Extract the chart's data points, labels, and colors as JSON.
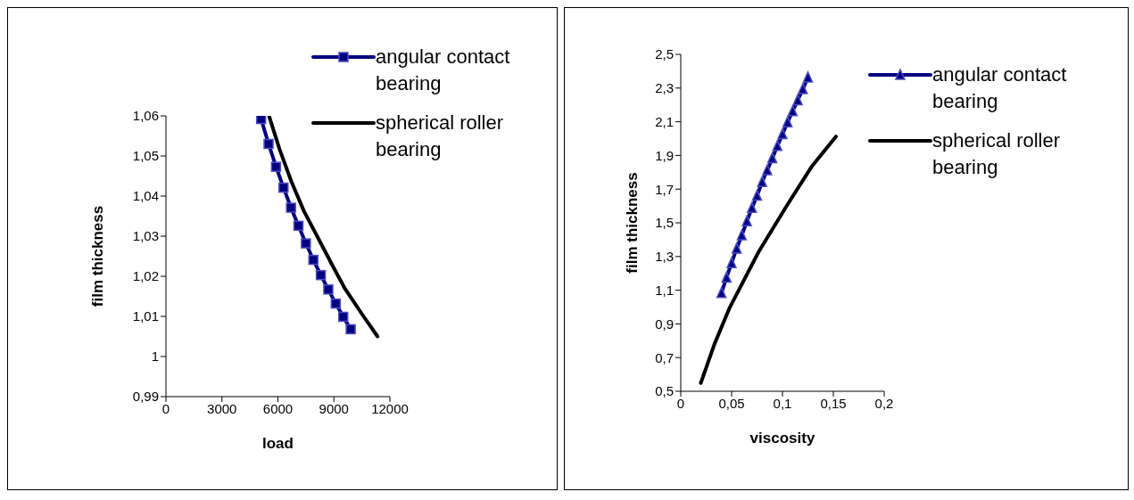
{
  "chart_data": [
    {
      "type": "line",
      "xlabel": "load",
      "ylabel": "film thickness",
      "xlim": [
        0,
        12000
      ],
      "xticks": [
        0,
        3000,
        6000,
        9000,
        12000
      ],
      "ylim": [
        0.99,
        1.06
      ],
      "yticks": [
        {
          "value": 0.99,
          "label": "0,99"
        },
        1,
        {
          "value": 1.01,
          "label": "1,01"
        },
        {
          "value": 1.02,
          "label": "1,02"
        },
        {
          "value": 1.03,
          "label": "1,03"
        },
        {
          "value": 1.04,
          "label": "1,04"
        },
        {
          "value": 1.05,
          "label": "1,05"
        },
        {
          "value": 1.06,
          "label": "1,06"
        }
      ],
      "legend": "top right",
      "line_style": "solid",
      "series": [
        {
          "name": "angular contact bearing",
          "color": "#000080",
          "marker": "square",
          "x": [
            5100,
            5500,
            5900,
            6300,
            6700,
            7100,
            7500,
            7900,
            8300,
            8700,
            9100,
            9500,
            9900
          ],
          "values": [
            1.0592,
            1.053,
            1.0473,
            1.0421,
            1.0371,
            1.0326,
            1.0282,
            1.0241,
            1.0203,
            1.0167,
            1.0132,
            1.0099,
            1.0068
          ]
        },
        {
          "name": "spherical roller bearing",
          "color": "#000000",
          "marker": "none",
          "x": [
            5535,
            6087,
            6722,
            7400,
            8145,
            8933,
            9568,
            10517,
            11338
          ],
          "values": [
            1.0598,
            1.0517,
            1.0436,
            1.0362,
            1.0296,
            1.0226,
            1.0171,
            1.0105,
            1.005
          ]
        }
      ]
    },
    {
      "type": "line",
      "xlabel": "viscosity",
      "ylabel": "film thickness",
      "xlim": [
        0,
        0.2
      ],
      "xticks": [
        0,
        {
          "value": 0.05,
          "label": "0,05"
        },
        {
          "value": 0.1,
          "label": "0,1"
        },
        {
          "value": 0.15,
          "label": "0,15"
        },
        {
          "value": 0.2,
          "label": "0,2"
        }
      ],
      "ylim": [
        0.5,
        2.5
      ],
      "yticks": [
        {
          "value": 0.5,
          "label": "0,5"
        },
        {
          "value": 0.7,
          "label": "0,7"
        },
        {
          "value": 0.9,
          "label": "0,9"
        },
        {
          "value": 1.1,
          "label": "1,1"
        },
        {
          "value": 1.3,
          "label": "1,3"
        },
        {
          "value": 1.5,
          "label": "1,5"
        },
        {
          "value": 1.7,
          "label": "1,7"
        },
        {
          "value": 1.9,
          "label": "1,9"
        },
        {
          "value": 2.1,
          "label": "2,1"
        },
        {
          "value": 2.3,
          "label": "2,3"
        },
        {
          "value": 2.5,
          "label": "2,5"
        }
      ],
      "legend": "top right",
      "line_style": "solid",
      "series": [
        {
          "name": "angular contact bearing",
          "color": "#000080",
          "marker": "triangle",
          "x": [
            0.04,
            0.045,
            0.05,
            0.055,
            0.06,
            0.065,
            0.07,
            0.075,
            0.08,
            0.085,
            0.09,
            0.095,
            0.1,
            0.105,
            0.11,
            0.115,
            0.12,
            0.125
          ],
          "values": [
            1.083,
            1.175,
            1.261,
            1.347,
            1.426,
            1.509,
            1.588,
            1.661,
            1.742,
            1.812,
            1.883,
            1.956,
            2.026,
            2.097,
            2.163,
            2.228,
            2.293,
            2.363
          ]
        },
        {
          "name": "spherical roller bearing",
          "color": "#000000",
          "marker": "none",
          "x": [
            0.0197,
            0.0332,
            0.0477,
            0.0766,
            0.1055,
            0.1286,
            0.1526
          ],
          "values": [
            0.549,
            0.781,
            0.991,
            1.328,
            1.614,
            1.833,
            2.012
          ]
        }
      ]
    }
  ]
}
